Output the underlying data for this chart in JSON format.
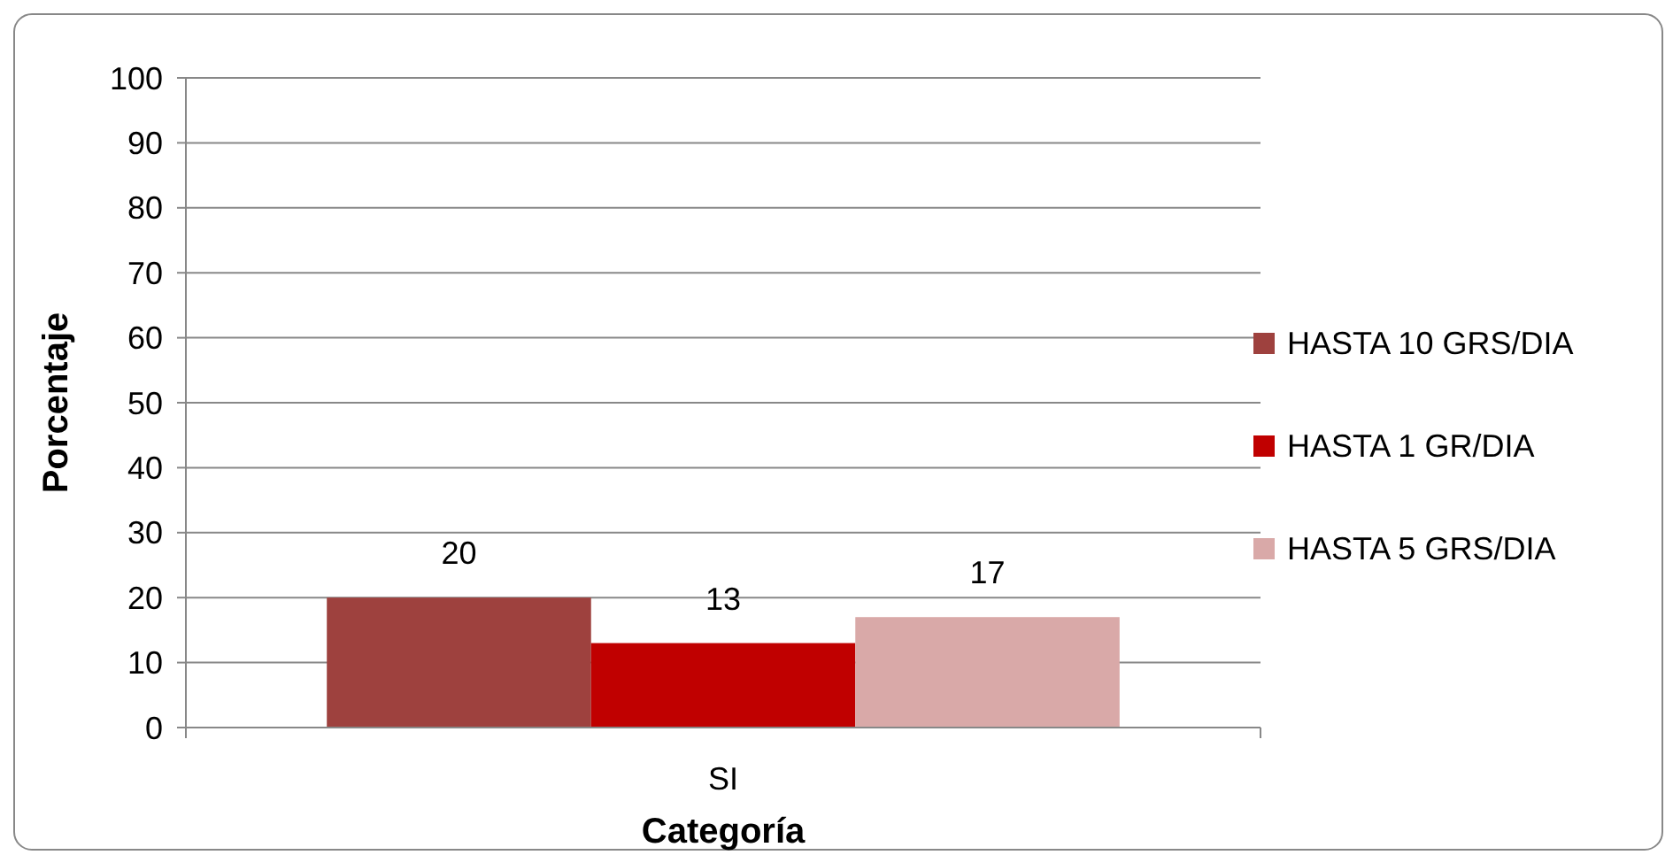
{
  "chart_data": {
    "type": "bar",
    "xlabel": "Categoría",
    "ylabel": "Porcentaje",
    "categories": [
      "SI"
    ],
    "series": [
      {
        "name": "HASTA 10 GRS/DIA",
        "color": "#9e413e",
        "values": [
          20
        ]
      },
      {
        "name": "HASTA 1 GR/DIA",
        "color": "#c00000",
        "values": [
          13
        ]
      },
      {
        "name": "HASTA 5 GRS/DIA",
        "color": "#d9a9a8",
        "values": [
          17
        ]
      }
    ],
    "ylim": [
      0,
      100
    ],
    "yticks": [
      0,
      10,
      20,
      30,
      40,
      50,
      60,
      70,
      80,
      90,
      100
    ],
    "grid": "y",
    "legend": "right",
    "data_labels": true
  }
}
